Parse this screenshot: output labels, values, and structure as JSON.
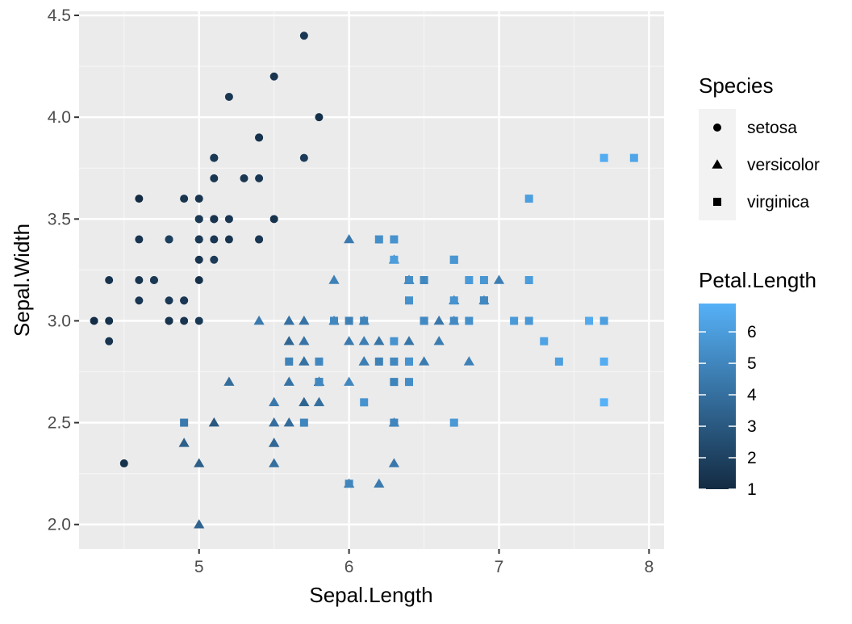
{
  "chart_data": {
    "type": "scatter",
    "title": "",
    "xlabel": "Sepal.Length",
    "ylabel": "Sepal.Width",
    "xlim": [
      4.2,
      8.1
    ],
    "ylim": [
      1.88,
      4.52
    ],
    "x_ticks": [
      5,
      6,
      7,
      8
    ],
    "y_ticks": [
      2.0,
      2.5,
      3.0,
      3.5,
      4.0,
      4.5
    ],
    "x_tick_labels": [
      "5",
      "6",
      "7",
      "8"
    ],
    "y_tick_labels": [
      "2.0",
      "2.5",
      "3.0",
      "3.5",
      "4.0",
      "4.5"
    ],
    "grid": true,
    "shape_legend": {
      "title": "Species",
      "position": "right",
      "entries": [
        {
          "label": "setosa",
          "shape": "circle"
        },
        {
          "label": "versicolor",
          "shape": "triangle"
        },
        {
          "label": "virginica",
          "shape": "square"
        }
      ]
    },
    "color_legend": {
      "title": "Petal.Length",
      "position": "right",
      "range": [
        1,
        6.9
      ],
      "ticks": [
        1,
        2,
        3,
        4,
        5,
        6
      ],
      "tick_labels": [
        "1",
        "2",
        "3",
        "4",
        "5",
        "6"
      ],
      "low_color": "#132B43",
      "high_color": "#56B1F7"
    },
    "series": [
      {
        "name": "setosa",
        "shape": "circle",
        "points": [
          [
            5.1,
            3.5,
            1.4
          ],
          [
            4.9,
            3.0,
            1.4
          ],
          [
            4.7,
            3.2,
            1.3
          ],
          [
            4.6,
            3.1,
            1.5
          ],
          [
            5.0,
            3.6,
            1.4
          ],
          [
            5.4,
            3.9,
            1.7
          ],
          [
            4.6,
            3.4,
            1.4
          ],
          [
            5.0,
            3.4,
            1.5
          ],
          [
            4.4,
            2.9,
            1.4
          ],
          [
            4.9,
            3.1,
            1.5
          ],
          [
            5.4,
            3.7,
            1.5
          ],
          [
            4.8,
            3.4,
            1.6
          ],
          [
            4.8,
            3.0,
            1.4
          ],
          [
            4.3,
            3.0,
            1.1
          ],
          [
            5.8,
            4.0,
            1.2
          ],
          [
            5.7,
            4.4,
            1.5
          ],
          [
            5.4,
            3.9,
            1.3
          ],
          [
            5.1,
            3.5,
            1.4
          ],
          [
            5.7,
            3.8,
            1.7
          ],
          [
            5.1,
            3.8,
            1.5
          ],
          [
            5.4,
            3.4,
            1.7
          ],
          [
            5.1,
            3.7,
            1.5
          ],
          [
            4.6,
            3.6,
            1.0
          ],
          [
            5.1,
            3.3,
            1.7
          ],
          [
            4.8,
            3.4,
            1.9
          ],
          [
            5.0,
            3.0,
            1.6
          ],
          [
            5.0,
            3.4,
            1.6
          ],
          [
            5.2,
            3.5,
            1.5
          ],
          [
            5.2,
            3.4,
            1.4
          ],
          [
            4.7,
            3.2,
            1.6
          ],
          [
            4.8,
            3.1,
            1.6
          ],
          [
            5.4,
            3.4,
            1.5
          ],
          [
            5.2,
            4.1,
            1.5
          ],
          [
            5.5,
            4.2,
            1.4
          ],
          [
            4.9,
            3.1,
            1.5
          ],
          [
            5.0,
            3.2,
            1.2
          ],
          [
            5.5,
            3.5,
            1.3
          ],
          [
            4.9,
            3.6,
            1.4
          ],
          [
            4.4,
            3.0,
            1.3
          ],
          [
            5.1,
            3.4,
            1.5
          ],
          [
            5.0,
            3.5,
            1.3
          ],
          [
            4.5,
            2.3,
            1.3
          ],
          [
            4.4,
            3.2,
            1.3
          ],
          [
            5.0,
            3.5,
            1.6
          ],
          [
            5.1,
            3.8,
            1.9
          ],
          [
            4.8,
            3.0,
            1.4
          ],
          [
            5.1,
            3.8,
            1.6
          ],
          [
            4.6,
            3.2,
            1.4
          ],
          [
            5.3,
            3.7,
            1.5
          ],
          [
            5.0,
            3.3,
            1.4
          ]
        ]
      },
      {
        "name": "versicolor",
        "shape": "triangle",
        "points": [
          [
            7.0,
            3.2,
            4.7
          ],
          [
            6.4,
            3.2,
            4.5
          ],
          [
            6.9,
            3.1,
            4.9
          ],
          [
            5.5,
            2.3,
            4.0
          ],
          [
            6.5,
            2.8,
            4.6
          ],
          [
            5.7,
            2.8,
            4.5
          ],
          [
            6.3,
            3.3,
            4.7
          ],
          [
            4.9,
            2.4,
            3.3
          ],
          [
            6.6,
            2.9,
            4.6
          ],
          [
            5.2,
            2.7,
            3.9
          ],
          [
            5.0,
            2.0,
            3.5
          ],
          [
            5.9,
            3.0,
            4.2
          ],
          [
            6.0,
            2.2,
            4.0
          ],
          [
            6.1,
            2.9,
            4.7
          ],
          [
            5.6,
            2.9,
            3.6
          ],
          [
            6.7,
            3.1,
            4.4
          ],
          [
            5.6,
            3.0,
            4.5
          ],
          [
            5.8,
            2.7,
            4.1
          ],
          [
            6.2,
            2.2,
            4.5
          ],
          [
            5.6,
            2.5,
            3.9
          ],
          [
            5.9,
            3.2,
            4.8
          ],
          [
            6.1,
            2.8,
            4.0
          ],
          [
            6.3,
            2.5,
            4.9
          ],
          [
            6.1,
            2.8,
            4.7
          ],
          [
            6.4,
            2.9,
            4.3
          ],
          [
            6.6,
            3.0,
            4.4
          ],
          [
            6.8,
            2.8,
            4.8
          ],
          [
            6.7,
            3.0,
            5.0
          ],
          [
            6.0,
            2.9,
            4.5
          ],
          [
            5.7,
            2.6,
            3.5
          ],
          [
            5.5,
            2.4,
            3.8
          ],
          [
            5.5,
            2.4,
            3.7
          ],
          [
            5.8,
            2.7,
            3.9
          ],
          [
            6.0,
            2.7,
            5.1
          ],
          [
            5.4,
            3.0,
            4.5
          ],
          [
            6.0,
            3.4,
            4.5
          ],
          [
            6.7,
            3.1,
            4.7
          ],
          [
            6.3,
            2.3,
            4.4
          ],
          [
            5.6,
            3.0,
            4.1
          ],
          [
            5.5,
            2.5,
            4.0
          ],
          [
            5.5,
            2.6,
            4.4
          ],
          [
            6.1,
            3.0,
            4.6
          ],
          [
            5.8,
            2.6,
            4.0
          ],
          [
            5.0,
            2.3,
            3.3
          ],
          [
            5.6,
            2.7,
            4.2
          ],
          [
            5.7,
            3.0,
            4.2
          ],
          [
            5.7,
            2.9,
            4.2
          ],
          [
            6.2,
            2.9,
            4.3
          ],
          [
            5.1,
            2.5,
            3.0
          ],
          [
            5.7,
            2.8,
            4.1
          ]
        ]
      },
      {
        "name": "virginica",
        "shape": "square",
        "points": [
          [
            6.3,
            3.3,
            6.0
          ],
          [
            5.8,
            2.7,
            5.1
          ],
          [
            7.1,
            3.0,
            5.9
          ],
          [
            6.3,
            2.9,
            5.6
          ],
          [
            6.5,
            3.0,
            5.8
          ],
          [
            7.6,
            3.0,
            6.6
          ],
          [
            4.9,
            2.5,
            4.5
          ],
          [
            7.3,
            2.9,
            6.3
          ],
          [
            6.7,
            2.5,
            5.8
          ],
          [
            7.2,
            3.6,
            6.1
          ],
          [
            6.5,
            3.2,
            5.1
          ],
          [
            6.4,
            2.7,
            5.3
          ],
          [
            6.8,
            3.0,
            5.5
          ],
          [
            5.7,
            2.5,
            5.0
          ],
          [
            5.8,
            2.8,
            5.1
          ],
          [
            6.4,
            3.2,
            5.3
          ],
          [
            6.5,
            3.0,
            5.5
          ],
          [
            7.7,
            3.8,
            6.7
          ],
          [
            7.7,
            2.6,
            6.9
          ],
          [
            6.0,
            2.2,
            5.0
          ],
          [
            6.9,
            3.2,
            5.7
          ],
          [
            5.6,
            2.8,
            4.9
          ],
          [
            7.7,
            2.8,
            6.7
          ],
          [
            6.3,
            2.7,
            4.9
          ],
          [
            6.7,
            3.3,
            5.7
          ],
          [
            7.2,
            3.2,
            6.0
          ],
          [
            6.2,
            2.8,
            4.8
          ],
          [
            6.1,
            3.0,
            4.9
          ],
          [
            6.4,
            2.8,
            5.6
          ],
          [
            7.2,
            3.0,
            5.8
          ],
          [
            7.4,
            2.8,
            6.1
          ],
          [
            7.9,
            3.8,
            6.4
          ],
          [
            6.4,
            2.8,
            5.6
          ],
          [
            6.3,
            2.8,
            5.1
          ],
          [
            6.1,
            2.6,
            5.6
          ],
          [
            7.7,
            3.0,
            6.1
          ],
          [
            6.3,
            3.4,
            5.6
          ],
          [
            6.4,
            3.1,
            5.5
          ],
          [
            6.0,
            3.0,
            4.8
          ],
          [
            6.9,
            3.1,
            5.4
          ],
          [
            6.7,
            3.1,
            5.6
          ],
          [
            6.9,
            3.1,
            5.1
          ],
          [
            5.8,
            2.7,
            5.1
          ],
          [
            6.8,
            3.2,
            5.9
          ],
          [
            6.7,
            3.3,
            5.7
          ],
          [
            6.7,
            3.0,
            5.2
          ],
          [
            6.3,
            2.5,
            5.0
          ],
          [
            6.5,
            3.0,
            5.2
          ],
          [
            6.2,
            3.4,
            5.4
          ],
          [
            5.9,
            3.0,
            5.1
          ]
        ]
      }
    ]
  }
}
